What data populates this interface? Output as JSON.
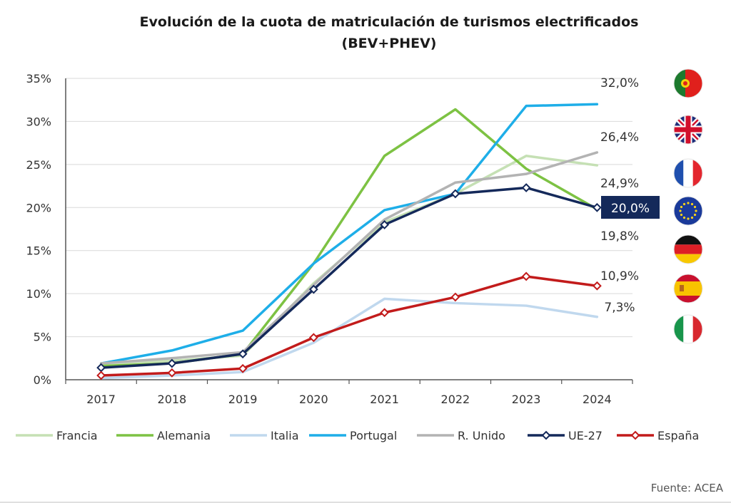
{
  "chart_data": {
    "type": "line",
    "title": "Evolución de la cuota de matriculación de turismos electrificados",
    "subtitle": "(BEV+PHEV)",
    "x": [
      "2017",
      "2018",
      "2019",
      "2020",
      "2021",
      "2022",
      "2023",
      "2024"
    ],
    "y_ticks": [
      "0%",
      "5%",
      "10%",
      "15%",
      "20%",
      "25%",
      "30%",
      "35%"
    ],
    "ylim": [
      0,
      35
    ],
    "grid": true,
    "legend_position": "bottom",
    "source": "Fuente:  ACEA",
    "series": [
      {
        "name": "Francia",
        "color": "#c5e0b4",
        "markers": false,
        "values": [
          1.9,
          2.2,
          2.8,
          11.2,
          18.3,
          21.6,
          26.0,
          24.9
        ]
      },
      {
        "name": "Alemania",
        "color": "#7dc243",
        "markers": false,
        "values": [
          1.6,
          1.9,
          3.0,
          13.5,
          26.0,
          31.4,
          24.5,
          19.8
        ]
      },
      {
        "name": "Italia",
        "color": "#c0d8ee",
        "markers": false,
        "values": [
          0.2,
          0.5,
          0.9,
          4.3,
          9.4,
          8.9,
          8.6,
          7.3
        ]
      },
      {
        "name": "Portugal",
        "color": "#1eaee8",
        "markers": false,
        "values": [
          1.9,
          3.4,
          5.7,
          13.5,
          19.7,
          21.6,
          31.8,
          32.0
        ]
      },
      {
        "name": "R. Unido",
        "color": "#b3b3b3",
        "markers": false,
        "values": [
          1.9,
          2.5,
          3.2,
          11.0,
          18.6,
          22.9,
          23.9,
          26.4
        ]
      },
      {
        "name": "UE-27",
        "color": "#14295a",
        "markers": true,
        "values": [
          1.4,
          1.9,
          3.0,
          10.5,
          18.0,
          21.6,
          22.3,
          20.0
        ]
      },
      {
        "name": "España",
        "color": "#c21b1b",
        "markers": true,
        "values": [
          0.5,
          0.8,
          1.3,
          4.9,
          7.8,
          9.6,
          12.0,
          10.9
        ]
      }
    ],
    "end_labels": [
      {
        "text": "32,0%",
        "series": "Portugal"
      },
      {
        "text": "26,4%",
        "series": "R. Unido"
      },
      {
        "text": "24,9%",
        "series": "Francia"
      },
      {
        "text": "20,0%",
        "series": "UE-27",
        "highlight": true
      },
      {
        "text": "19,8%",
        "series": "Alemania"
      },
      {
        "text": "10,9%",
        "series": "España"
      },
      {
        "text": "7,3%",
        "series": "Italia"
      }
    ],
    "flags": [
      "portugal-flag-icon",
      "united-kingdom-flag-icon",
      "france-flag-icon",
      "european-union-flag-icon",
      "germany-flag-icon",
      "spain-flag-icon",
      "italy-flag-icon"
    ]
  }
}
